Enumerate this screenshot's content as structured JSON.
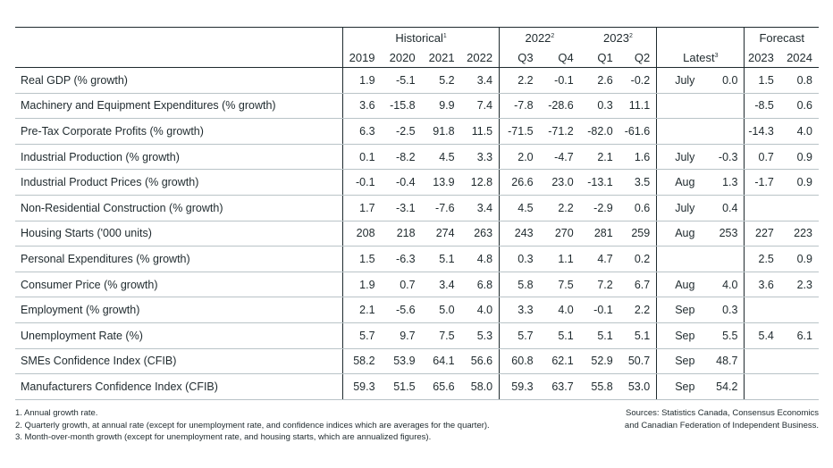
{
  "header": {
    "historical": "Historical",
    "historical_sup": "1",
    "y2022": "2022",
    "y2022_sup": "2",
    "y2023": "2023",
    "y2023_sup": "2",
    "latest": "Latest",
    "latest_sup": "3",
    "forecast": "Forecast",
    "cols": [
      "2019",
      "2020",
      "2021",
      "2022",
      "Q3",
      "Q4",
      "Q1",
      "Q2",
      "2023",
      "2024"
    ]
  },
  "rows": [
    {
      "label": "Real GDP (% growth)",
      "v": [
        "1.9",
        "-5.1",
        "5.2",
        "3.4",
        "2.2",
        "-0.1",
        "2.6",
        "-0.2"
      ],
      "lm": "July",
      "lv": "0.0",
      "f": [
        "1.5",
        "0.8"
      ]
    },
    {
      "label": "Machinery and Equipment Expenditures (% growth)",
      "v": [
        "3.6",
        "-15.8",
        "9.9",
        "7.4",
        "-7.8",
        "-28.6",
        "0.3",
        "11.1"
      ],
      "lm": "",
      "lv": "",
      "f": [
        "-8.5",
        "0.6"
      ]
    },
    {
      "label": "Pre-Tax Corporate Profits (% growth)",
      "v": [
        "6.3",
        "-2.5",
        "91.8",
        "11.5",
        "-71.5",
        "-71.2",
        "-82.0",
        "-61.6"
      ],
      "lm": "",
      "lv": "",
      "f": [
        "-14.3",
        "4.0"
      ]
    },
    {
      "label": "Industrial Production (% growth)",
      "v": [
        "0.1",
        "-8.2",
        "4.5",
        "3.3",
        "2.0",
        "-4.7",
        "2.1",
        "1.6"
      ],
      "lm": "July",
      "lv": "-0.3",
      "f": [
        "0.7",
        "0.9"
      ]
    },
    {
      "label": "Industrial Product Prices (% growth)",
      "v": [
        "-0.1",
        "-0.4",
        "13.9",
        "12.8",
        "26.6",
        "23.0",
        "-13.1",
        "3.5"
      ],
      "lm": "Aug",
      "lv": "1.3",
      "f": [
        "-1.7",
        "0.9"
      ]
    },
    {
      "label": "Non-Residential Construction (% growth)",
      "v": [
        "1.7",
        "-3.1",
        "-7.6",
        "3.4",
        "4.5",
        "2.2",
        "-2.9",
        "0.6"
      ],
      "lm": "July",
      "lv": "0.4",
      "f": [
        "",
        ""
      ]
    },
    {
      "label": "Housing Starts ('000 units)",
      "v": [
        "208",
        "218",
        "274",
        "263",
        "243",
        "270",
        "281",
        "259"
      ],
      "lm": "Aug",
      "lv": "253",
      "f": [
        "227",
        "223"
      ]
    },
    {
      "label": "Personal Expenditures (% growth)",
      "v": [
        "1.5",
        "-6.3",
        "5.1",
        "4.8",
        "0.3",
        "1.1",
        "4.7",
        "0.2"
      ],
      "lm": "",
      "lv": "",
      "f": [
        "2.5",
        "0.9"
      ]
    },
    {
      "label": "Consumer Price (% growth)",
      "v": [
        "1.9",
        "0.7",
        "3.4",
        "6.8",
        "5.8",
        "7.5",
        "7.2",
        "6.7"
      ],
      "lm": "Aug",
      "lv": "4.0",
      "f": [
        "3.6",
        "2.3"
      ]
    },
    {
      "label": "Employment (% growth)",
      "v": [
        "2.1",
        "-5.6",
        "5.0",
        "4.0",
        "3.3",
        "4.0",
        "-0.1",
        "2.2"
      ],
      "lm": "Sep",
      "lv": "0.3",
      "f": [
        "",
        ""
      ]
    },
    {
      "label": "Unemployment Rate (%)",
      "v": [
        "5.7",
        "9.7",
        "7.5",
        "5.3",
        "5.7",
        "5.1",
        "5.1",
        "5.1"
      ],
      "lm": "Sep",
      "lv": "5.5",
      "f": [
        "5.4",
        "6.1"
      ]
    },
    {
      "label": "SMEs Confidence Index (CFIB)",
      "v": [
        "58.2",
        "53.9",
        "64.1",
        "56.6",
        "60.8",
        "62.1",
        "52.9",
        "50.7"
      ],
      "lm": "Sep",
      "lv": "48.7",
      "f": [
        "",
        ""
      ]
    },
    {
      "label": "Manufacturers Confidence Index (CFIB)",
      "v": [
        "59.3",
        "51.5",
        "65.6",
        "58.0",
        "59.3",
        "63.7",
        "55.8",
        "53.0"
      ],
      "lm": "Sep",
      "lv": "54.2",
      "f": [
        "",
        ""
      ]
    }
  ],
  "notes": [
    "1. Annual growth rate.",
    "2. Quarterly growth, at annual rate (except for unemployment rate, and confidence indices which are averages for the quarter).",
    "3. Month-over-month growth (except for unemployment rate, and housing starts, which are annualized figures)."
  ],
  "sources": [
    "Sources: Statistics Canada, Consensus Economics",
    "and Canadian Federation of Independent Business."
  ]
}
